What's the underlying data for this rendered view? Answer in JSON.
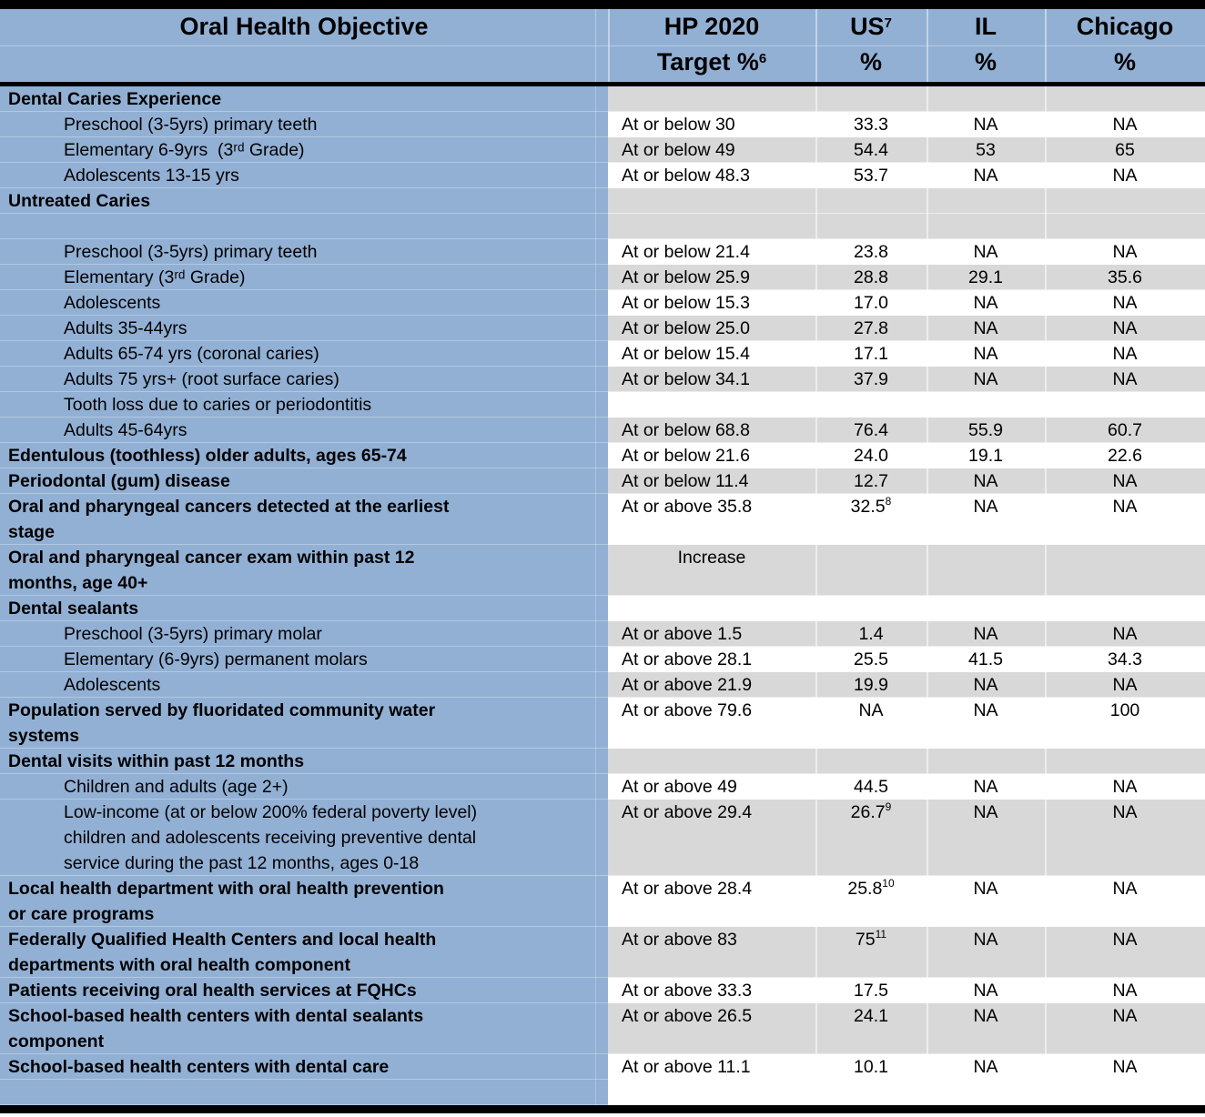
{
  "colors": {
    "header_blue": "#92B0D4",
    "row_gray": "#D8D8D8",
    "row_white": "#FFFFFF",
    "border_black": "#000000"
  },
  "header": {
    "col1": "Oral Health Objective",
    "col2": {
      "line1": "HP 2020",
      "line2": "Target %",
      "sup": "6"
    },
    "col3": {
      "line1": "US",
      "sup": "7",
      "line2": "%"
    },
    "col4": {
      "line1": "IL",
      "line2": "%"
    },
    "col5": {
      "line1": "Chicago",
      "line2": "%"
    }
  },
  "table": {
    "rows": [
      {
        "objective": "Dental Caries Experience",
        "style": "section",
        "shade": "gray",
        "target": "",
        "us": "",
        "il": "",
        "chicago": ""
      },
      {
        "objective": "Preschool (3-5yrs) primary teeth",
        "style": "sub",
        "shade": "white",
        "target": "At or below 30",
        "us": "33.3",
        "il": "NA",
        "chicago": "NA"
      },
      {
        "objective": "Elementary 6-9yrs  (3ʳᵈ Grade)",
        "style": "sub",
        "shade": "gray",
        "target": "At or below 49",
        "us": "54.4",
        "il": "53",
        "chicago": "65"
      },
      {
        "objective": "Adolescents 13-15 yrs",
        "style": "sub",
        "shade": "white",
        "target": "At or below 48.3",
        "us": "53.7",
        "il": "NA",
        "chicago": "NA"
      },
      {
        "objective": "Untreated Caries",
        "style": "section",
        "shade": "gray",
        "target": "",
        "us": "",
        "il": "",
        "chicago": ""
      },
      {
        "objective": "",
        "style": "spacer",
        "shade": "gray",
        "target": "",
        "us": "",
        "il": "",
        "chicago": ""
      },
      {
        "objective": "Preschool (3-5yrs) primary teeth",
        "style": "sub",
        "shade": "white",
        "target": "At or below 21.4",
        "us": "23.8",
        "il": "NA",
        "chicago": "NA"
      },
      {
        "objective": "Elementary (3ʳᵈ Grade)",
        "style": "sub",
        "shade": "gray",
        "target": "At or below 25.9",
        "us": "28.8",
        "il": "29.1",
        "chicago": "35.6"
      },
      {
        "objective": "Adolescents",
        "style": "sub",
        "shade": "white",
        "target": "At or below 15.3",
        "us": "17.0",
        "il": "NA",
        "chicago": "NA"
      },
      {
        "objective": "Adults 35-44yrs",
        "style": "sub",
        "shade": "gray",
        "target": "At or below 25.0",
        "us": "27.8",
        "il": "NA",
        "chicago": "NA"
      },
      {
        "objective": "Adults 65-74 yrs (coronal caries)",
        "style": "sub",
        "shade": "white",
        "target": "At or below 15.4",
        "us": "17.1",
        "il": "NA",
        "chicago": "NA"
      },
      {
        "objective": "Adults 75 yrs+ (root surface caries)",
        "style": "sub",
        "shade": "gray",
        "target": "At or below 34.1",
        "us": "37.9",
        "il": "NA",
        "chicago": "NA"
      },
      {
        "objective": "Tooth loss due to caries or periodontitis",
        "style": "sub",
        "shade": "white",
        "target": "",
        "us": "",
        "il": "",
        "chicago": ""
      },
      {
        "objective": "Adults 45-64yrs",
        "style": "sub",
        "shade": "gray",
        "target": "At or below 68.8",
        "us": "76.4",
        "il": "55.9",
        "chicago": "60.7"
      },
      {
        "objective": "Edentulous (toothless) older adults, ages 65-74",
        "style": "section",
        "shade": "white",
        "target": "At or below 21.6",
        "us": "24.0",
        "il": "19.1",
        "chicago": "22.6"
      },
      {
        "objective": "Periodontal (gum) disease",
        "style": "section",
        "shade": "gray",
        "target": "At or below 11.4",
        "us": "12.7",
        "il": "NA",
        "chicago": "NA"
      },
      {
        "objective": "Oral and pharyngeal cancers detected at the earliest\nstage",
        "style": "section",
        "shade": "white",
        "target": "At or above 35.8",
        "us": "32.5",
        "us_sup": "8",
        "il": "NA",
        "chicago": "NA"
      },
      {
        "objective": "Oral and pharyngeal cancer exam within past 12\nmonths, age 40+",
        "style": "section",
        "shade": "gray",
        "target": "Increase",
        "target_center": true,
        "us": "",
        "il": "",
        "chicago": ""
      },
      {
        "objective": "Dental sealants",
        "style": "section",
        "shade": "white",
        "target": "",
        "us": "",
        "il": "",
        "chicago": ""
      },
      {
        "objective": "Preschool (3-5yrs) primary molar",
        "style": "sub",
        "shade": "gray",
        "target": "At or above 1.5",
        "us": "1.4",
        "il": "NA",
        "chicago": "NA"
      },
      {
        "objective": "Elementary (6-9yrs) permanent molars",
        "style": "sub",
        "shade": "white",
        "target": "At or above 28.1",
        "us": "25.5",
        "il": "41.5",
        "chicago": "34.3"
      },
      {
        "objective": "Adolescents",
        "style": "sub",
        "shade": "gray",
        "target": "At or above 21.9",
        "us": "19.9",
        "il": "NA",
        "chicago": "NA"
      },
      {
        "objective": "Population served by fluoridated community water\nsystems",
        "style": "section",
        "shade": "white",
        "target": "At or above 79.6",
        "us": "NA",
        "il": "NA",
        "chicago": "100"
      },
      {
        "objective": "Dental visits within past 12 months",
        "style": "section",
        "shade": "gray",
        "target": "",
        "us": "",
        "il": "",
        "chicago": ""
      },
      {
        "objective": "Children and adults (age 2+)",
        "style": "sub",
        "shade": "white",
        "target": "At or above 49",
        "us": "44.5",
        "il": "NA",
        "chicago": "NA"
      },
      {
        "objective": "Low-income (at or below 200% federal poverty level)\nchildren and adolescents receiving preventive dental\nservice during the past 12 months, ages 0-18",
        "style": "sub",
        "shade": "gray",
        "target": "At or above 29.4",
        "us": "26.7",
        "us_sup": "9",
        "il": "NA",
        "chicago": "NA"
      },
      {
        "objective": "Local health department with oral health prevention\nor care programs",
        "style": "section",
        "shade": "white",
        "target": "At or above 28.4",
        "us": "25.8",
        "us_sup": "10",
        "il": "NA",
        "chicago": "NA"
      },
      {
        "objective": "Federally Qualified Health Centers and local health\ndepartments with oral health component",
        "style": "section",
        "shade": "gray",
        "target": "At or above 83",
        "us": "75",
        "us_sup": "11",
        "il": "NA",
        "chicago": "NA"
      },
      {
        "objective": "Patients receiving oral health services at FQHCs",
        "style": "section",
        "shade": "white",
        "target": "At or above 33.3",
        "us": "17.5",
        "il": "NA",
        "chicago": "NA"
      },
      {
        "objective": "School-based health centers with dental sealants\ncomponent",
        "style": "section",
        "shade": "gray",
        "target": "At or above 26.5",
        "us": "24.1",
        "il": "NA",
        "chicago": "NA"
      },
      {
        "objective": "School-based health centers with dental care",
        "style": "section",
        "shade": "white",
        "target": "At or above 11.1",
        "us": "10.1",
        "il": "NA",
        "chicago": "NA"
      },
      {
        "objective": "",
        "style": "spacer",
        "shade": "white",
        "target": "",
        "us": "",
        "il": "",
        "chicago": ""
      }
    ]
  }
}
